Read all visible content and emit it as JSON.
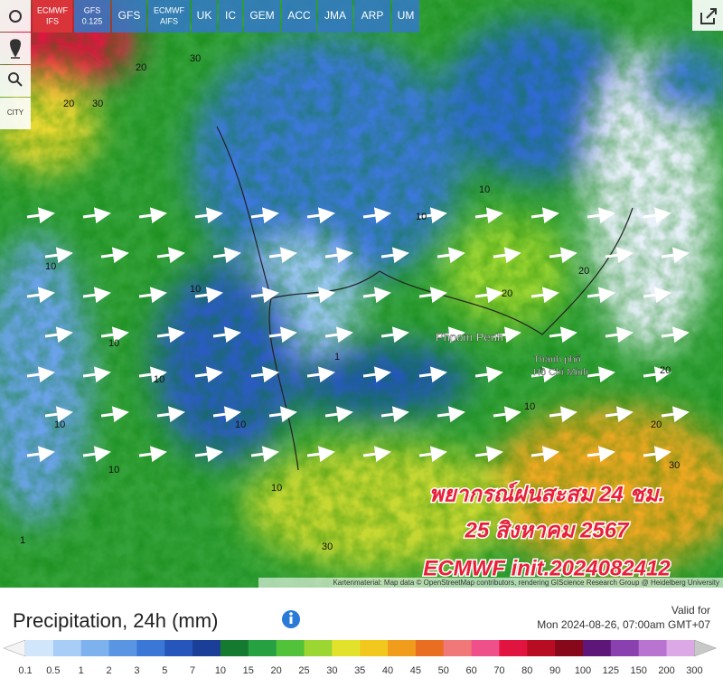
{
  "toolbar": {
    "models": [
      [
        "ECMWF",
        "IFS"
      ],
      [
        "GFS",
        "0.125"
      ],
      [
        "GFS"
      ],
      [
        "ECMWF",
        "AIFS"
      ],
      [
        "UK"
      ],
      [
        "IC"
      ],
      [
        "GEM"
      ],
      [
        "ACC"
      ],
      [
        "JMA"
      ],
      [
        "ARP"
      ],
      [
        "UM"
      ]
    ],
    "active": 0,
    "city_button": "CITY"
  },
  "map": {
    "places": [
      "Phnom Penh",
      "Thành phố",
      "Hồ Chí Minh"
    ],
    "contour_labels": [
      "20",
      "30",
      "10",
      "20",
      "10",
      "10",
      "10",
      "10",
      "10",
      "10",
      "1",
      "10",
      "20",
      "10",
      "20",
      "30",
      "1",
      "30",
      "10",
      "20",
      "10",
      "20",
      "30"
    ],
    "overlay": [
      "พยากรณ์ฝนสะสม 24 ชม.",
      "25 สิงหาคม 2567",
      "ECMWF init.2024082412"
    ],
    "attribution": "Kartenmaterial: Map data © OpenStreetMap contributors, rendering GIScience Research Group @ Heidelberg University"
  },
  "legend": {
    "title": "Precipitation, 24h (mm)",
    "valid_label": "Valid for",
    "valid_time": "Mon 2024-08-26, 07:00am GMT+07",
    "labels": [
      0.1,
      0.5,
      1,
      2,
      3,
      5,
      7,
      10,
      15,
      20,
      25,
      30,
      35,
      40,
      45,
      50,
      60,
      70,
      80,
      90,
      100,
      125,
      150,
      200,
      300
    ],
    "colors": [
      "#f4f4f4",
      "#d2e6fb",
      "#a8cdf6",
      "#7eb2ef",
      "#5a95e4",
      "#3a77d6",
      "#2656bb",
      "#1b3f98",
      "#157a30",
      "#26a040",
      "#52c23a",
      "#9cd632",
      "#e2e22c",
      "#f2c81e",
      "#f29c1e",
      "#ea6e22",
      "#f07878",
      "#f0508a",
      "#e0143e",
      "#b80c22",
      "#86081a",
      "#5e1678",
      "#8a40ae",
      "#b874d0",
      "#dca8e6",
      "#f4dcf4",
      "#c8c8c8"
    ]
  }
}
